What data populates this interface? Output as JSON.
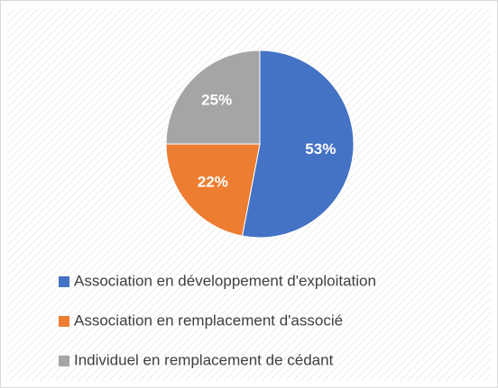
{
  "chart_data": {
    "type": "pie",
    "categories": [
      "Association en développement d'exploitation",
      "Association en remplacement d'associé",
      "Individuel en remplacement de cédant"
    ],
    "values": [
      53,
      22,
      25
    ],
    "value_labels": [
      "53%",
      "22%",
      "25%"
    ],
    "colors": [
      "#4472c4",
      "#ed7d31",
      "#a5a5a5"
    ],
    "legend": "bottom"
  }
}
